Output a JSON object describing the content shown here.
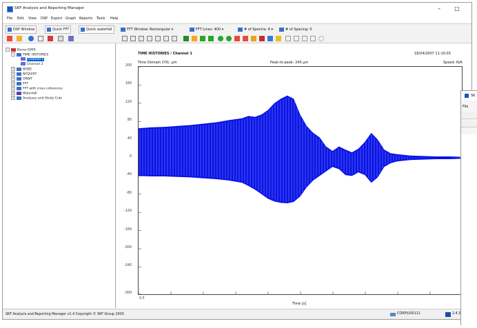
{
  "window": {
    "title": "SKF Analysis and Reporting Manager",
    "minimize": "–",
    "maximize": "□",
    "close": "×"
  },
  "menu": [
    "File",
    "Edit",
    "View",
    "DSP",
    "Export",
    "Graph",
    "Reports",
    "Tools",
    "Help"
  ],
  "toolbar": {
    "dsp_window": "DSP Window",
    "quick_fft": "Quick FFT",
    "quick_waterfall": "Quick waterfall",
    "fft_window": "FFT Window: Rectangular",
    "fft_lines": "FFT Lines: 400",
    "spectra": "# of Spectra: 8",
    "spacing": "# of Spacing: 0"
  },
  "tree": {
    "items": [
      {
        "label": "Demo DATA",
        "level": 0,
        "expander": "−",
        "icon": "database-icon"
      },
      {
        "label": "TIME HISTORIES",
        "level": 1,
        "expander": "−",
        "icon": "signal-icon"
      },
      {
        "label": "Channel 1",
        "level": 2,
        "expander": "",
        "icon": "wave-icon",
        "selected": true
      },
      {
        "label": "Channel 2",
        "level": 2,
        "expander": "",
        "icon": "wave-icon"
      },
      {
        "label": "BODE",
        "level": 1,
        "expander": "+",
        "icon": "signal-icon"
      },
      {
        "label": "NYQUIST",
        "level": 1,
        "expander": "+",
        "icon": "signal-icon"
      },
      {
        "label": "ORBIT",
        "level": 1,
        "expander": "+",
        "icon": "signal-icon"
      },
      {
        "label": "FFT",
        "level": 1,
        "expander": "+",
        "icon": "signal-icon"
      },
      {
        "label": "FFT with cross coherence",
        "level": 1,
        "expander": "+",
        "icon": "signal-icon"
      },
      {
        "label": "Waterfall",
        "level": 1,
        "expander": "+",
        "icon": "waterfall-icon"
      },
      {
        "label": "Analyses and Study Cuts",
        "level": 1,
        "expander": "+",
        "icon": "signal-icon"
      }
    ]
  },
  "chart": {
    "title": "TIME HISTORIES / Channel 1",
    "date": "18/04/2007 11:10:03",
    "domain": "Time Domain CH1: µm",
    "peak": "Peak-to-peak: 245 µm",
    "speed": "Speed: N/A",
    "xlabel": "Time [s]",
    "x_first_tick": "0.5"
  },
  "chart_data": {
    "type": "area",
    "title": "TIME HISTORIES / Channel 1",
    "xlabel": "Time [s]",
    "ylabel": "",
    "ylim": [
      -300,
      200
    ],
    "yticks": [
      200,
      160,
      120,
      80,
      40,
      0,
      -40,
      -80,
      -120,
      -160,
      -200,
      -240,
      -300
    ],
    "x": [
      0,
      0.04,
      0.08,
      0.12,
      0.16,
      0.2,
      0.24,
      0.28,
      0.32,
      0.34,
      0.36,
      0.38,
      0.4,
      0.42,
      0.44,
      0.46,
      0.48,
      0.5,
      0.52,
      0.54,
      0.56,
      0.58,
      0.6,
      0.62,
      0.64,
      0.66,
      0.68,
      0.7,
      0.72,
      0.74,
      0.76,
      0.78,
      0.8,
      0.84,
      0.88,
      0.92,
      0.96,
      1.0
    ],
    "series": [
      {
        "values": [
          65,
          67,
          68,
          70,
          72,
          75,
          78,
          83,
          87,
          92,
          90,
          95,
          105,
          120,
          130,
          137,
          130,
          95,
          70,
          55,
          45,
          25,
          15,
          25,
          18,
          12,
          20,
          35,
          55,
          40,
          18,
          10,
          8,
          5,
          4,
          3,
          3,
          2
        ]
      },
      {
        "values": [
          -40,
          -41,
          -41,
          -42,
          -43,
          -45,
          -47,
          -50,
          -55,
          -62,
          -70,
          -80,
          -90,
          -96,
          -99,
          -100,
          -97,
          -85,
          -65,
          -50,
          -40,
          -30,
          -20,
          -25,
          -38,
          -40,
          -32,
          -38,
          -55,
          -43,
          -20,
          -12,
          -8,
          -5,
          -4,
          -3,
          -3,
          -2
        ]
      }
    ],
    "color": "#0a13e6",
    "grid": false
  },
  "statusbar": {
    "copyright": "SKF Analysis and Reporting Manager v1.4 Copyright © SKF Group 2003",
    "user": "CORP\\U00111",
    "version": "2.4.3"
  },
  "second_window": {
    "title": "SK",
    "menu": "File"
  }
}
